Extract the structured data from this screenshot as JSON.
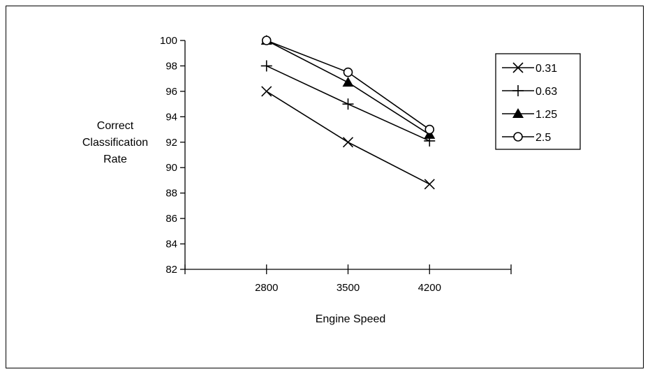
{
  "chart_data": {
    "type": "line",
    "title": "",
    "xlabel": "Engine Speed",
    "ylabel": [
      "Correct",
      "Classification",
      "Rate"
    ],
    "categories": [
      "2800",
      "3500",
      "4200"
    ],
    "ylim": [
      82,
      100
    ],
    "yticks": [
      82,
      84,
      86,
      88,
      90,
      92,
      94,
      96,
      98,
      100
    ],
    "grid": false,
    "legend_position": "right",
    "series": [
      {
        "name": "0.31",
        "marker": "x",
        "values": [
          96,
          92,
          88.7
        ]
      },
      {
        "name": "0.63",
        "marker": "plus",
        "values": [
          98,
          95,
          92.1
        ]
      },
      {
        "name": "1.25",
        "marker": "triangle",
        "values": [
          100,
          96.7,
          92.6
        ]
      },
      {
        "name": "2.5",
        "marker": "circle",
        "values": [
          100,
          97.5,
          93
        ]
      }
    ]
  }
}
